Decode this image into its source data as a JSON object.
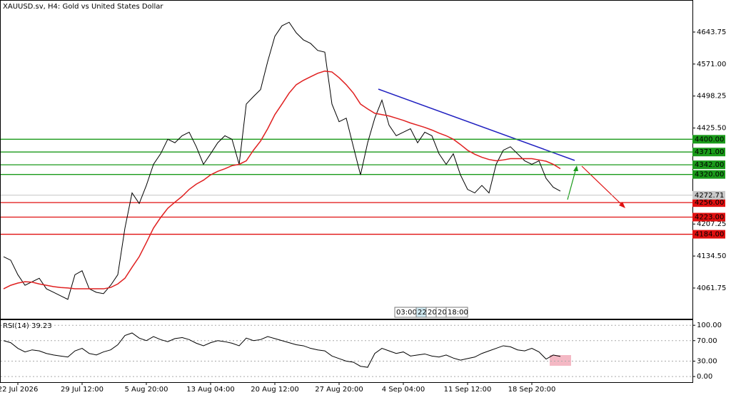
{
  "chart_data": [
    {
      "type": "line",
      "title": "XAUUSD.sv, H4: Gold vs United States Dollar",
      "categories": [
        null,
        null,
        "22 Jul 2026",
        null,
        null,
        null,
        null,
        null,
        null,
        null,
        null,
        "29 Jul 12:00",
        null,
        null,
        null,
        null,
        null,
        null,
        null,
        null,
        "5 Aug 20:00",
        null,
        null,
        null,
        null,
        null,
        null,
        null,
        null,
        "13 Aug 04:00",
        null,
        null,
        null,
        null,
        null,
        null,
        null,
        null,
        "20 Aug 12:00",
        null,
        null,
        null,
        null,
        null,
        null,
        null,
        null,
        "27 Aug 20:00",
        null,
        null,
        null,
        null,
        null,
        null,
        null,
        null,
        "4 Sep 04:00",
        null,
        null,
        null,
        null,
        null,
        null,
        null,
        null,
        "11 Sep 12:00",
        null,
        null,
        null,
        null,
        null,
        null,
        null,
        null,
        "18 Sep 20:00",
        null,
        null,
        null,
        null
      ],
      "series": [
        {
          "color": "#000000",
          "values": [
            4133,
            4125,
            4092,
            4068,
            4076,
            4084,
            4060,
            4052,
            4044,
            4036,
            4092,
            4101,
            4060,
            4052,
            4049,
            4068,
            4092,
            4198,
            4278,
            4254,
            4295,
            4343,
            4367,
            4400,
            4392,
            4408,
            4416,
            4383,
            4343,
            4367,
            4392,
            4408,
            4400,
            4343,
            4480,
            4497,
            4513,
            4577,
            4634,
            4658,
            4666,
            4642,
            4626,
            4618,
            4602,
            4598,
            4480,
            4440,
            4448,
            4383,
            4319,
            4392,
            4448,
            4489,
            4432,
            4408,
            4416,
            4424,
            4392,
            4416,
            4408,
            4367,
            4343,
            4367,
            4319,
            4286,
            4278,
            4295,
            4278,
            4343,
            4375,
            4383,
            4367,
            4351,
            4343,
            4351,
            4311,
            4291,
            4282
          ]
        },
        {
          "color": "#e02020",
          "values": [
            4060,
            4068,
            4073,
            4076,
            4075,
            4071,
            4068,
            4065,
            4063,
            4062,
            4060,
            4060,
            4060,
            4060,
            4060,
            4063,
            4071,
            4084,
            4109,
            4133,
            4165,
            4198,
            4222,
            4243,
            4257,
            4270,
            4286,
            4298,
            4307,
            4319,
            4327,
            4333,
            4340,
            4343,
            4351,
            4375,
            4396,
            4424,
            4456,
            4480,
            4505,
            4524,
            4534,
            4542,
            4550,
            4555,
            4553,
            4540,
            4524,
            4505,
            4480,
            4469,
            4459,
            4456,
            4453,
            4448,
            4443,
            4437,
            4432,
            4427,
            4421,
            4414,
            4408,
            4400,
            4388,
            4375,
            4366,
            4359,
            4354,
            4351,
            4353,
            4356,
            4356,
            4356,
            4356,
            4353,
            4350,
            4343,
            4333
          ]
        }
      ],
      "ylim": [
        3992,
        4715
      ],
      "yticks": [
        4061.75,
        {
          "value": 4134.5,
          "label": "4134.50"
        },
        4207.25,
        {
          "value": 4425.5,
          "label": "4425.50"
        },
        4498.25,
        {
          "value": 4571,
          "label": "4571.00"
        },
        4643.75
      ],
      "last_price": 4272.71,
      "levels": {
        "values": [
          4400,
          4371,
          4342,
          4320,
          4256,
          4223,
          4184
        ],
        "value_labels": [
          "4400.00",
          "4371.00",
          "4342.00",
          "4320.00",
          "4256.00",
          "4223.00",
          "4184.00"
        ],
        "colors": [
          "#1a9a1a",
          "#1a9a1a",
          "#1a9a1a",
          "#1a9a1a",
          "#e01010",
          "#e01010",
          "#e01010"
        ]
      },
      "time_scroll": [
        "03:00",
        "22",
        "20",
        "20",
        "18:00"
      ]
    },
    {
      "type": "line",
      "title": "RSI(14) 39.23",
      "series": [
        {
          "color": "#000000",
          "values": [
            70,
            66,
            55,
            48,
            52,
            50,
            45,
            42,
            40,
            38,
            50,
            55,
            45,
            42,
            48,
            52,
            62,
            80,
            85,
            75,
            70,
            78,
            72,
            68,
            74,
            76,
            72,
            65,
            60,
            66,
            70,
            68,
            65,
            60,
            75,
            70,
            72,
            78,
            74,
            70,
            66,
            62,
            60,
            55,
            52,
            50,
            40,
            35,
            30,
            28,
            20,
            18,
            45,
            55,
            50,
            45,
            48,
            40,
            42,
            44,
            40,
            38,
            42,
            36,
            32,
            35,
            38,
            45,
            50,
            55,
            60,
            58,
            52,
            50,
            55,
            48,
            34,
            42,
            39.23
          ]
        }
      ],
      "ylim": [
        -11,
        110
      ],
      "yticks": [
        {
          "value": 0,
          "label": "0.00"
        },
        {
          "value": 30,
          "label": "30.00"
        },
        {
          "value": 70,
          "label": "70.00"
        },
        {
          "value": 100,
          "label": "100.00"
        }
      ],
      "grid": true
    }
  ]
}
